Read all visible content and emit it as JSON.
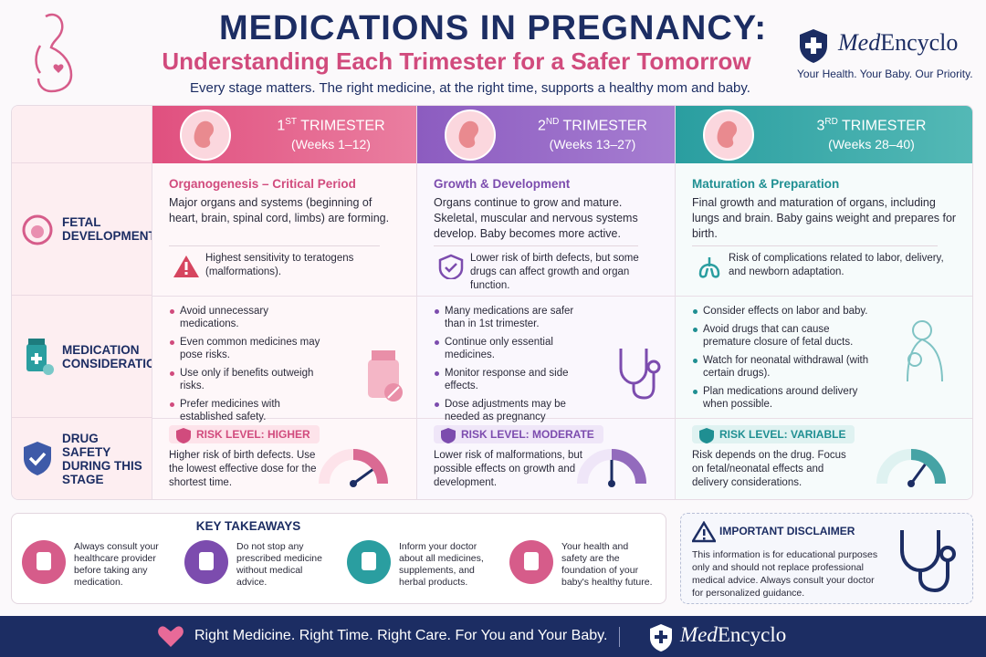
{
  "header": {
    "title": "MEDICATIONS IN PREGNANCY:",
    "subtitle": "Understanding Each Trimester for a Safer Tomorrow",
    "tagline": "Every stage matters. The right medicine, at the right time, supports a healthy mom and baby."
  },
  "brand": {
    "name_italic": "Med",
    "name_rest": "Encyclo",
    "slogan": "Your Health. Your Baby. Our Priority."
  },
  "rows": [
    {
      "label": "FETAL DEVELOPMENT"
    },
    {
      "label": "MEDICATION CONSIDERATIONS"
    },
    {
      "label": "DRUG SAFETY DURING THIS STAGE"
    }
  ],
  "trimesters": [
    {
      "ordinal": "1",
      "suffix": "ST",
      "name": "TRIMESTER",
      "weeks": "(Weeks 1–12)",
      "development": {
        "heading": "Organogenesis – Critical Period",
        "text": "Major organs and systems (beginning of heart, brain, spinal cord, limbs) are forming.",
        "note": "Highest sensitivity to teratogens (malformations)."
      },
      "considerations": [
        "Avoid unnecessary medications.",
        "Even common medicines may pose risks.",
        "Use only if benefits outweigh risks.",
        "Prefer medicines with established safety."
      ],
      "risk": {
        "label": "RISK LEVEL: HIGHER",
        "text": "Higher risk of birth defects. Use the lowest effective dose for the shortest time."
      }
    },
    {
      "ordinal": "2",
      "suffix": "ND",
      "name": "TRIMESTER",
      "weeks": "(Weeks 13–27)",
      "development": {
        "heading": "Growth & Development",
        "text": "Organs continue to grow and mature. Skeletal, muscular and nervous systems develop. Baby becomes more active.",
        "note": "Lower risk of birth defects, but some drugs can affect growth and organ function."
      },
      "considerations": [
        "Many medications are safer than in 1st trimester.",
        "Continue only essential medicines.",
        "Monitor response and side effects.",
        "Dose adjustments may be needed as pregnancy progresses."
      ],
      "risk": {
        "label": "RISK LEVEL: MODERATE",
        "text": "Lower risk of malformations, but possible effects on growth and development."
      }
    },
    {
      "ordinal": "3",
      "suffix": "RD",
      "name": "TRIMESTER",
      "weeks": "(Weeks 28–40)",
      "development": {
        "heading": "Maturation & Preparation",
        "text": "Final growth and maturation of organs, including lungs and brain. Baby gains weight and prepares for birth.",
        "note": "Risk of complications related to labor, delivery, and newborn adaptation."
      },
      "considerations": [
        "Consider effects on labor and baby.",
        "Avoid drugs that can cause premature closure of fetal ducts.",
        "Watch for neonatal withdrawal (with certain drugs).",
        "Plan medications around delivery when possible."
      ],
      "risk": {
        "label": "RISK LEVEL: VARIABLE",
        "text": "Risk depends on the drug. Focus on fetal/neonatal effects and delivery considerations."
      }
    }
  ],
  "takeaways": {
    "title": "KEY TAKEAWAYS",
    "items": [
      "Always consult your healthcare provider before taking any medication.",
      "Do not stop any prescribed medicine without medical advice.",
      "Inform your doctor about all medicines, supplements, and herbal products.",
      "Your health and safety are the foundation of your baby's healthy future."
    ]
  },
  "disclaimer": {
    "title": "IMPORTANT DISCLAIMER",
    "text": "This information is for educational purposes only and should not replace professional medical advice. Always consult your doctor for personalized guidance."
  },
  "footer": {
    "text": "Right Medicine. Right Time. Right Care. For You and Your Baby.",
    "brand_italic": "Med",
    "brand_rest": "Encyclo"
  }
}
